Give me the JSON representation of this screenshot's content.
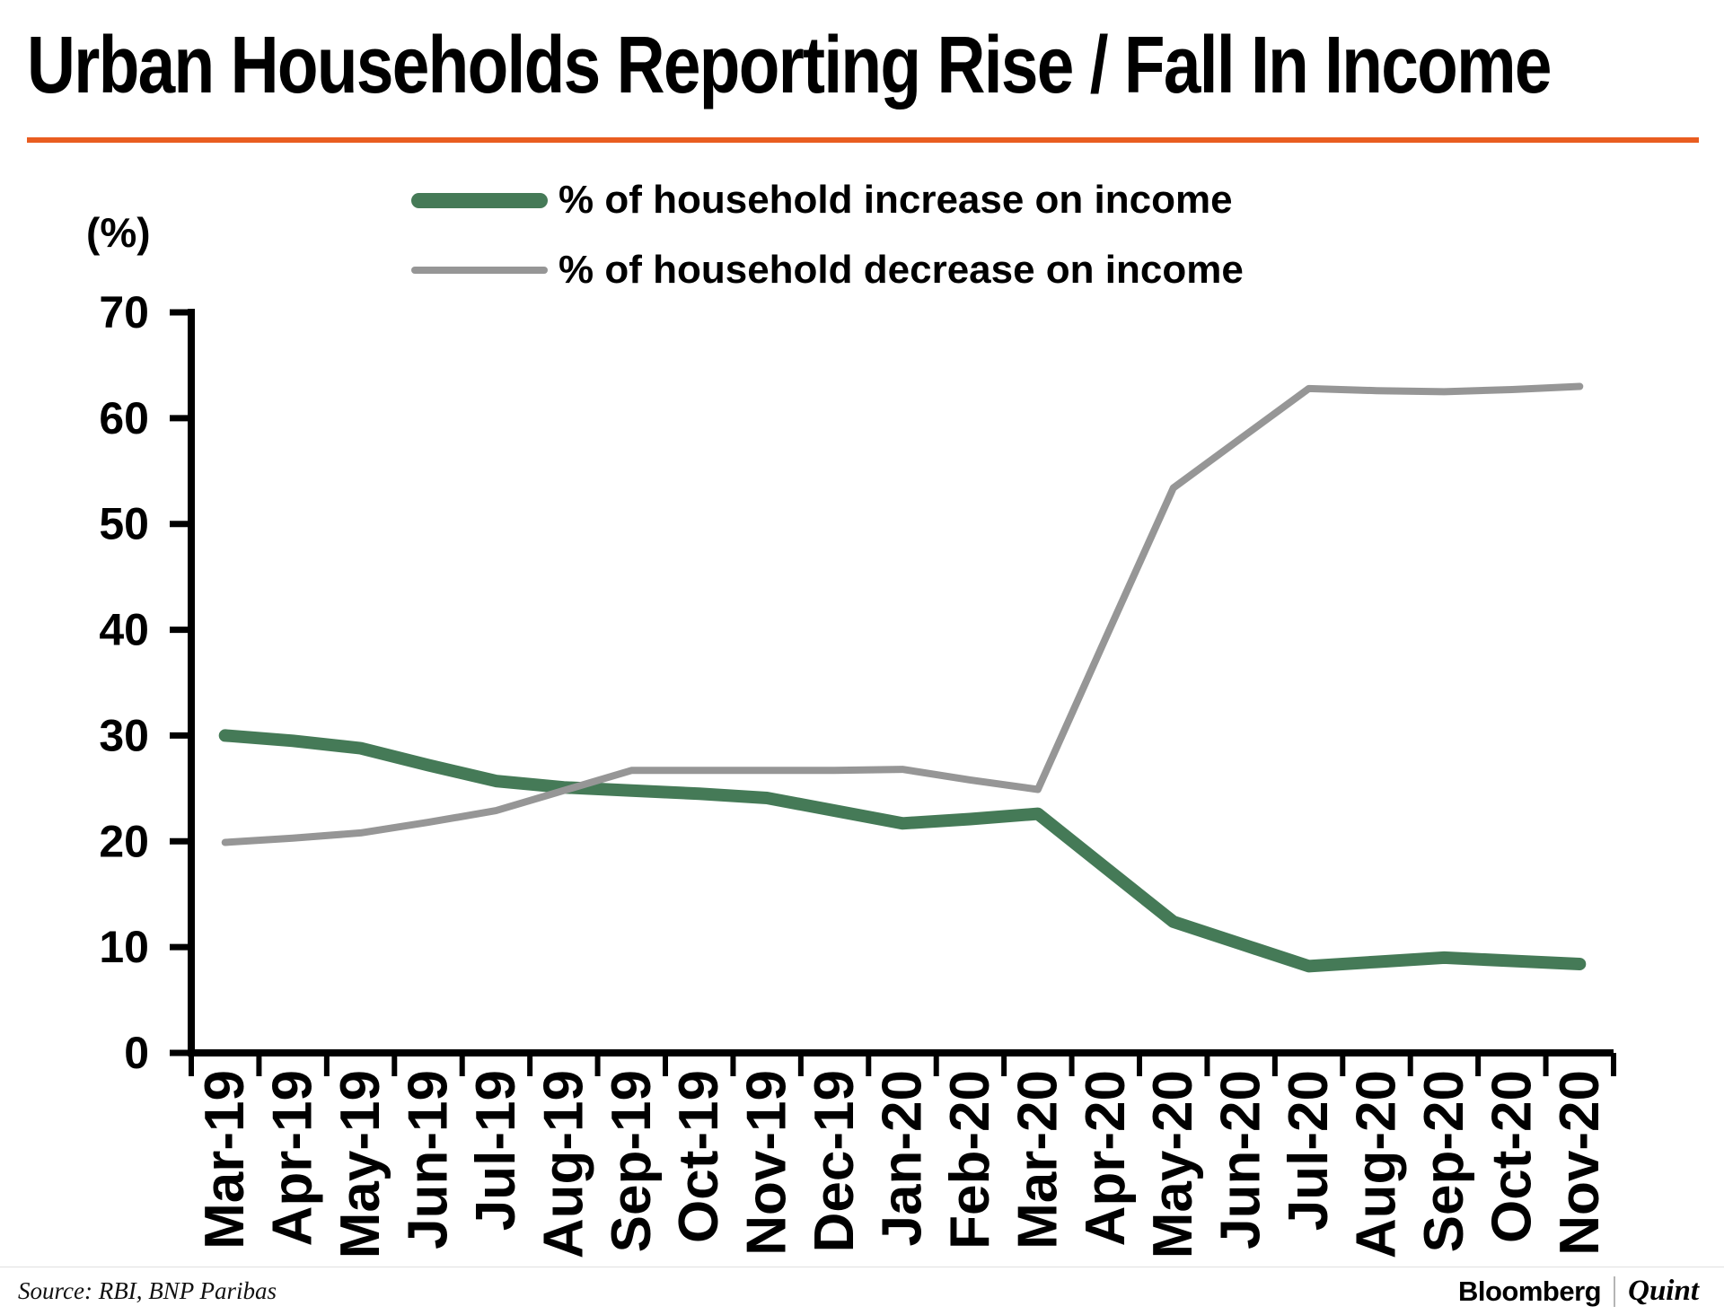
{
  "title": "Urban Households Reporting Rise / Fall In Income",
  "accent_color": "#e95d20",
  "footer": {
    "source": "Source: RBI, BNP Paribas",
    "logo_bloomberg": "Bloomberg",
    "logo_quint": "Quint"
  },
  "chart_data": {
    "type": "line",
    "title": "Urban Households Reporting Rise / Fall In Income",
    "unit_label": "(%)",
    "xlabel": "",
    "ylabel": "(%)",
    "ylim": [
      0,
      70
    ],
    "ytick_interval": 10,
    "yticks": [
      0,
      10,
      20,
      30,
      40,
      50,
      60,
      70
    ],
    "grid": false,
    "legend_position": "top-center",
    "categories": [
      "Mar-19",
      "Apr-19",
      "May-19",
      "Jun-19",
      "Jul-19",
      "Aug-19",
      "Sep-19",
      "Oct-19",
      "Nov-19",
      "Dec-19",
      "Jan-20",
      "Feb-20",
      "Mar-20",
      "Apr-20",
      "May-20",
      "Jun-20",
      "Jul-20",
      "Aug-20",
      "Sep-20",
      "Oct-20",
      "Nov-20"
    ],
    "series": [
      {
        "name": "% of household increase on income",
        "color": "#457a57",
        "stroke_width": 14,
        "values": [
          30.0,
          29.5,
          28.8,
          27.2,
          25.7,
          25.1,
          24.8,
          24.5,
          24.1,
          22.9,
          21.7,
          22.1,
          22.6,
          17.5,
          12.4,
          10.3,
          8.2,
          8.6,
          9.0,
          8.7,
          8.4
        ]
      },
      {
        "name": "% of household decrease on income",
        "color": "#969696",
        "stroke_width": 8,
        "values": [
          19.9,
          20.3,
          20.8,
          21.8,
          22.9,
          24.8,
          26.7,
          26.7,
          26.7,
          26.7,
          26.8,
          25.8,
          24.9,
          39.2,
          53.4,
          58.1,
          62.8,
          62.6,
          62.5,
          62.7,
          63.0
        ]
      }
    ]
  }
}
